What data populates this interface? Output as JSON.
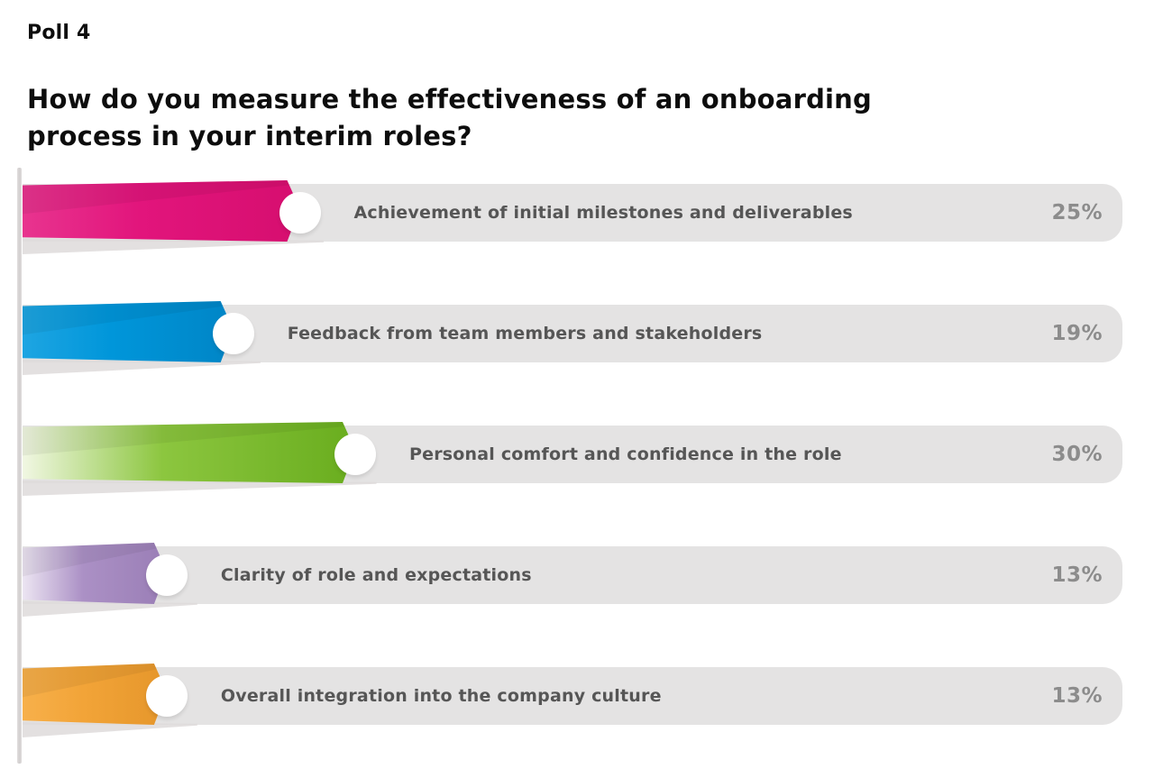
{
  "page": {
    "title": "Poll 4",
    "question": "How do you measure the effectiveness of an onboarding process in your interim roles?"
  },
  "chart_data": {
    "type": "bar",
    "orientation": "horizontal",
    "title": "How do you measure the effectiveness of an onboarding process in your interim roles?",
    "unit": "%",
    "value_range": [
      0,
      100
    ],
    "track_color": "#e4e3e3",
    "label_color": "#565656",
    "value_color": "#8c8c8c",
    "categories": [
      "Achievement of initial milestones and deliverables",
      "Feedback from team members and stakeholders",
      "Personal comfort and confidence in the role",
      "Clarity of role and expectations",
      "Overall integration into the company culture"
    ],
    "values": [
      25,
      19,
      30,
      13,
      13
    ],
    "options": [
      {
        "label": "Achievement of initial milestones and deliverables",
        "value": 25,
        "value_label": "25%",
        "color": "#e2157c",
        "color_light": "#e8348f",
        "color_dark": "#d60e6f"
      },
      {
        "label": "Feedback from team members and stakeholders",
        "value": 19,
        "value_label": "19%",
        "color": "#0096da",
        "color_light": "#1ea5e2",
        "color_dark": "#0085c6"
      },
      {
        "label": "Personal comfort and confidence in the role",
        "value": 30,
        "value_label": "30%",
        "color": "#8cc63f",
        "color_light": "#f1f7e3",
        "color_dark": "#69ad1e"
      },
      {
        "label": "Clarity of role and expectations",
        "value": 13,
        "value_label": "13%",
        "color": "#ab90c5",
        "color_light": "#ece5f2",
        "color_dark": "#9a7eb6"
      },
      {
        "label": "Overall integration into the company culture",
        "value": 13,
        "value_label": "13%",
        "color": "#f2a438",
        "color_light": "#f7b04b",
        "color_dark": "#e5962b"
      }
    ]
  }
}
